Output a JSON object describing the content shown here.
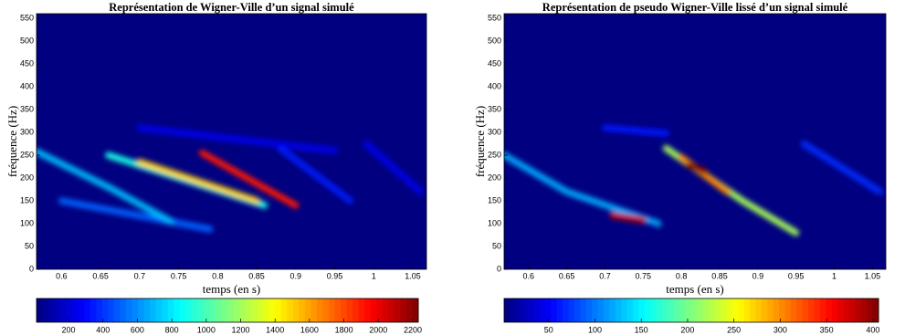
{
  "chart_data": [
    {
      "type": "heatmap",
      "title": "Représentation de Wigner-Ville d’un signal simulé",
      "xlabel": "temps (en s)",
      "ylabel": "fréquence (Hz)",
      "colormap": "jet",
      "xlim": [
        0.568,
        1.0675
      ],
      "ylim": [
        0,
        560
      ],
      "xticks": [
        0.6,
        0.65,
        0.7,
        0.75,
        0.8,
        0.85,
        0.9,
        0.95,
        1,
        1.05
      ],
      "yticks": [
        0,
        50,
        100,
        150,
        200,
        250,
        300,
        350,
        400,
        450,
        500,
        550
      ],
      "clim": [
        14,
        2232
      ],
      "cticks": [
        200,
        400,
        600,
        800,
        1000,
        1200,
        1400,
        1600,
        1800,
        2000,
        2200
      ],
      "ridges": [
        {
          "x": [
            0.99,
            1.06
          ],
          "y": [
            275,
            170
          ],
          "value": 250
        },
        {
          "x": [
            0.88,
            0.97
          ],
          "y": [
            265,
            150
          ],
          "value": 350
        },
        {
          "x": [
            0.7,
            0.95
          ],
          "y": [
            310,
            260
          ],
          "value": 250
        },
        {
          "x": [
            0.6,
            0.79
          ],
          "y": [
            150,
            88
          ],
          "value": 500
        },
        {
          "x": [
            0.568,
            0.66,
            0.74
          ],
          "y": [
            258,
            180,
            105
          ],
          "value": 700
        },
        {
          "x": [
            0.66,
            0.86
          ],
          "y": [
            250,
            140
          ],
          "value": 900
        },
        {
          "x": [
            0.7,
            0.85
          ],
          "y": [
            235,
            150
          ],
          "value": 1500
        },
        {
          "x": [
            0.78,
            0.9
          ],
          "y": [
            255,
            140
          ],
          "value": 1900
        }
      ]
    },
    {
      "type": "heatmap",
      "title": "Représentation de pseudo Wigner-Ville lissé d’un signal simulé",
      "xlabel": "temps (en s)",
      "ylabel": "fréquence (Hz)",
      "colormap": "jet",
      "xlim": [
        0.568,
        1.0675
      ],
      "ylim": [
        0,
        560
      ],
      "xticks": [
        0.6,
        0.65,
        0.7,
        0.75,
        0.8,
        0.85,
        0.9,
        0.95,
        1,
        1.05
      ],
      "yticks": [
        0,
        50,
        100,
        150,
        200,
        250,
        300,
        350,
        400,
        450,
        500,
        550
      ],
      "clim": [
        2,
        406
      ],
      "cticks": [
        50,
        100,
        150,
        200,
        250,
        300,
        350,
        400
      ],
      "ridges": [
        {
          "x": [
            0.7,
            0.78
          ],
          "y": [
            310,
            298
          ],
          "value": 60
        },
        {
          "x": [
            0.96,
            1.06
          ],
          "y": [
            275,
            170
          ],
          "value": 70
        },
        {
          "x": [
            0.568,
            0.65,
            0.77
          ],
          "y": [
            250,
            170,
            100
          ],
          "value": 120
        },
        {
          "x": [
            0.78,
            0.88,
            0.95
          ],
          "y": [
            265,
            150,
            80
          ],
          "value": 220
        },
        {
          "x": [
            0.8,
            0.86
          ],
          "y": [
            245,
            170
          ],
          "value": 300
        },
        {
          "x": [
            0.71,
            0.75
          ],
          "y": [
            118,
            108
          ],
          "value": 380
        },
        {
          "x": [
            0.81,
            0.83
          ],
          "y": [
            228,
            215
          ],
          "value": 400
        }
      ]
    }
  ]
}
